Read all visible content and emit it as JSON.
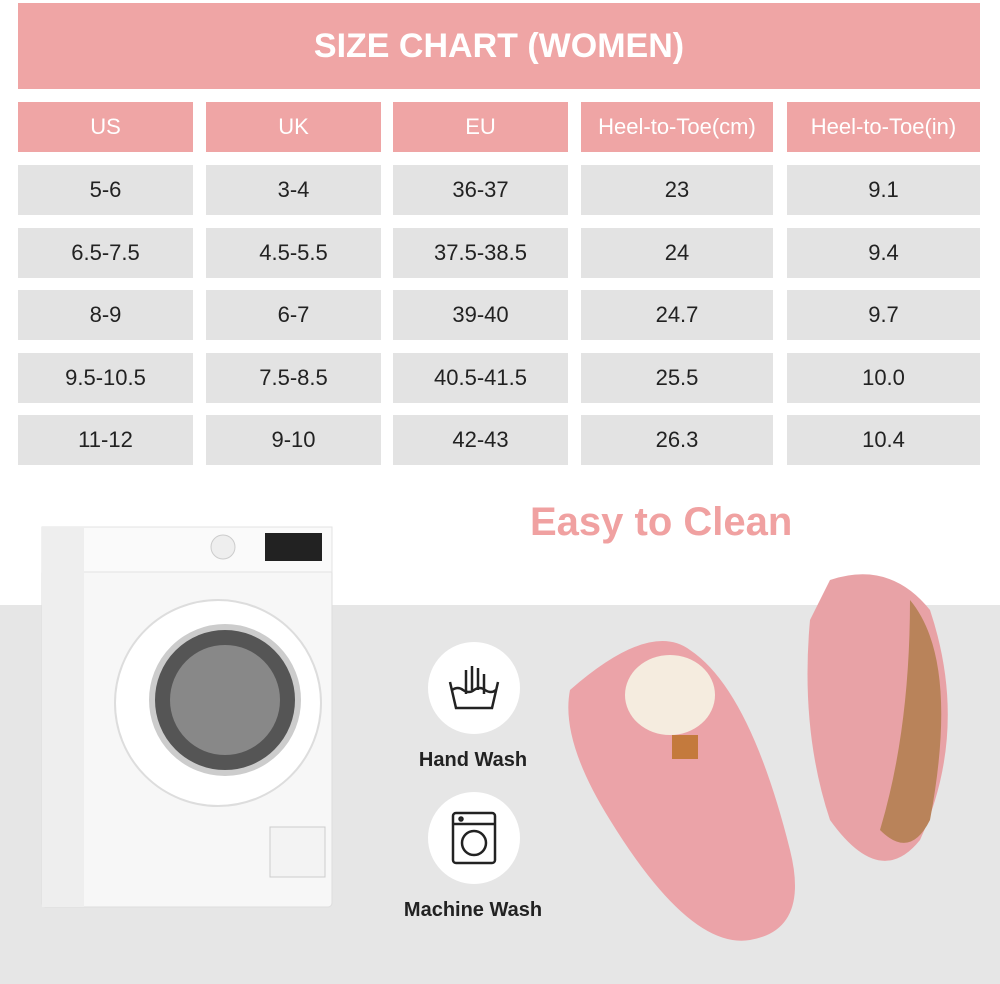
{
  "title": "SIZE CHART (WOMEN)",
  "headers": [
    "US",
    "UK",
    "EU",
    "Heel-to-Toe(cm)",
    "Heel-to-Toe(in)"
  ],
  "rows": [
    [
      "5-6",
      "3-4",
      "36-37",
      "23",
      "9.1"
    ],
    [
      "6.5-7.5",
      "4.5-5.5",
      "37.5-38.5",
      "24",
      "9.4"
    ],
    [
      "8-9",
      "6-7",
      "39-40",
      "24.7",
      "9.7"
    ],
    [
      "9.5-10.5",
      "7.5-8.5",
      "40.5-41.5",
      "25.5",
      "10.0"
    ],
    [
      "11-12",
      "9-10",
      "42-43",
      "26.3",
      "10.4"
    ]
  ],
  "care": {
    "heading": "Easy to Clean",
    "items": [
      {
        "label": "Hand Wash",
        "icon": "hand-wash-icon"
      },
      {
        "label": "Machine Wash",
        "icon": "machine-wash-icon"
      }
    ]
  },
  "colors": {
    "accent": "#efa5a5",
    "cell": "#e3e3e3",
    "heading": "#f0a1a1"
  }
}
